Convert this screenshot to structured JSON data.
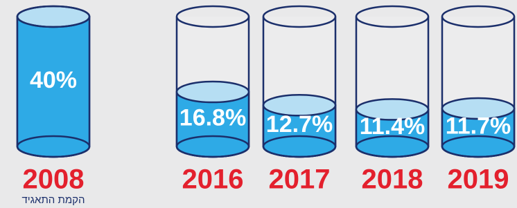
{
  "chart_data": {
    "type": "glass",
    "categories": [
      "2008",
      "2016",
      "2017",
      "2018",
      "2019"
    ],
    "values": [
      40,
      16.8,
      12.7,
      11.4,
      11.7
    ],
    "value_labels": [
      "40%",
      "16.8%",
      "12.7%",
      "11.4%",
      "11.7%"
    ],
    "annotation": "הקמת התאגיד",
    "color": "#2eaae6"
  }
}
